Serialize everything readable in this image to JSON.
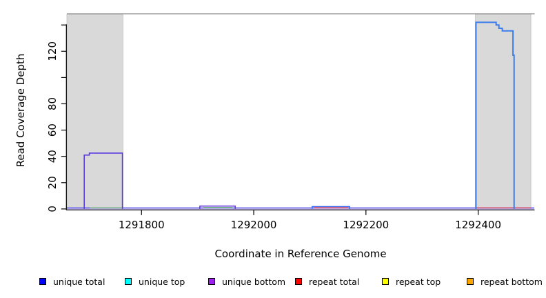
{
  "chart_data": {
    "type": "line",
    "title": "",
    "xlabel": "Coordinate in Reference Genome",
    "ylabel": "Read Coverage Depth",
    "xlim": [
      1291667,
      1292500
    ],
    "ylim": [
      0,
      148.5
    ],
    "grid": false,
    "frame_top_color": "#8a8a8a",
    "axis_color": "#000000",
    "band_fill": "#d9d9d9",
    "band_border": "#c2c2c2",
    "x_ticks": [
      {
        "value": 1291800,
        "label": "1291800"
      },
      {
        "value": 1292000,
        "label": "1292000"
      },
      {
        "value": 1292200,
        "label": "1292200"
      },
      {
        "value": 1292400,
        "label": "1292400"
      }
    ],
    "y_ticks": [
      {
        "value": 0,
        "label": "0"
      },
      {
        "value": 20,
        "label": "20"
      },
      {
        "value": 40,
        "label": "40"
      },
      {
        "value": 60,
        "label": "60"
      },
      {
        "value": 80,
        "label": "80"
      },
      {
        "value": 100,
        "label": ""
      },
      {
        "value": 120,
        "label": "120"
      },
      {
        "value": 140,
        "label": ""
      }
    ],
    "shaded_regions": [
      {
        "x1": 1291667,
        "x2": 1291767
      },
      {
        "x1": 1292395,
        "x2": 1292494
      }
    ],
    "series": [
      {
        "name": "baseline-light",
        "color": "#b7aaf2",
        "width": 1.3,
        "points": [
          [
            1291667,
            0
          ],
          [
            1292500,
            0
          ]
        ]
      },
      {
        "name": "baseline-blue",
        "color": "#4f46e8",
        "width": 1.3,
        "points": [
          [
            1291667,
            0.8
          ],
          [
            1292500,
            0.8
          ]
        ]
      },
      {
        "name": "left-region-green",
        "color": "#6dbf6d",
        "width": 1.3,
        "points": [
          [
            1291708,
            0.8
          ],
          [
            1291766,
            0.8
          ]
        ]
      },
      {
        "name": "right-region-red",
        "color": "#e8404f",
        "width": 1.3,
        "points": [
          [
            1292396,
            0.8
          ],
          [
            1292493,
            0.8
          ]
        ]
      },
      {
        "name": "bump1-green",
        "color": "#6dbf6d",
        "width": 1.3,
        "points": [
          [
            1291910,
            1.1
          ],
          [
            1291962,
            1.1
          ]
        ]
      },
      {
        "name": "bump1-outline",
        "color": "#6233dd",
        "width": 1.5,
        "points": [
          [
            1291904,
            0
          ],
          [
            1291904,
            2.2
          ],
          [
            1291967,
            2.2
          ],
          [
            1291967,
            0
          ]
        ]
      },
      {
        "name": "bump2-red",
        "color": "#e8404f",
        "width": 1.3,
        "points": [
          [
            1292108,
            0.9
          ],
          [
            1292168,
            0.9
          ]
        ]
      },
      {
        "name": "bump2-outline",
        "color": "#3c6cf0",
        "width": 1.5,
        "points": [
          [
            1292104,
            0
          ],
          [
            1292104,
            1.8
          ],
          [
            1292171,
            1.8
          ],
          [
            1292171,
            0
          ]
        ]
      },
      {
        "name": "left-plateau",
        "color": "#5b3be0",
        "width": 1.6,
        "points": [
          [
            1291698,
            0
          ],
          [
            1291698,
            41
          ],
          [
            1291707,
            41
          ],
          [
            1291707,
            42.5
          ],
          [
            1291766,
            42.5
          ],
          [
            1291766,
            0
          ]
        ]
      },
      {
        "name": "right-plateau",
        "color": "#3c7cec",
        "width": 2,
        "points": [
          [
            1292396,
            0
          ],
          [
            1292396,
            142
          ],
          [
            1292432,
            142
          ],
          [
            1292432,
            140
          ],
          [
            1292437,
            140
          ],
          [
            1292437,
            137.5
          ],
          [
            1292443,
            137.5
          ],
          [
            1292443,
            135.5
          ],
          [
            1292462,
            135.5
          ],
          [
            1292462,
            117
          ],
          [
            1292464,
            117
          ],
          [
            1292464,
            0
          ]
        ]
      }
    ]
  },
  "legend": {
    "items": [
      {
        "label": "unique total",
        "color": "#0000ff"
      },
      {
        "label": "unique top",
        "color": "#00ffff"
      },
      {
        "label": "unique bottom",
        "color": "#a020f0"
      },
      {
        "label": "repeat total",
        "color": "#ff0000"
      },
      {
        "label": "repeat top",
        "color": "#ffff00"
      },
      {
        "label": "repeat bottom",
        "color": "#ffa500"
      }
    ]
  }
}
